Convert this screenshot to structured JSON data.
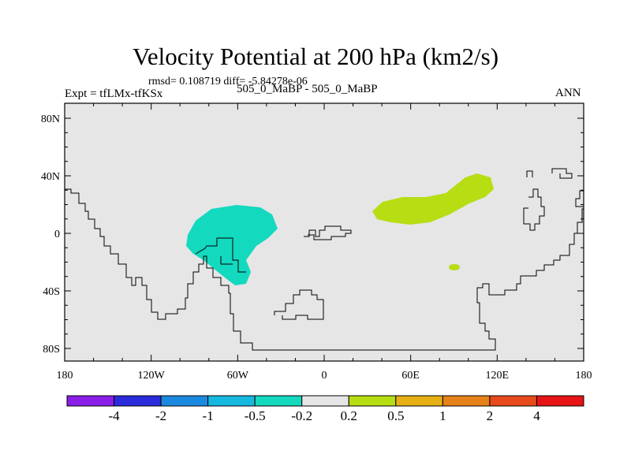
{
  "title": "Velocity Potential at 200 hPa (km2/s)",
  "stats": "rmsd= 0.108719 diff= -5.84278e-06",
  "expt": "Expt = tfLMx-tfKSx",
  "subtitle": "505_0_MaBP - 505_0_MaBP",
  "season": "ANN",
  "lat_ticks": [
    "80N",
    "40N",
    "0",
    "40S",
    "80S"
  ],
  "lon_ticks": [
    "180",
    "120W",
    "60W",
    "0",
    "60E",
    "120E",
    "180"
  ],
  "colorbar": {
    "colors": [
      "#8a1ee6",
      "#2b2bdc",
      "#1a8ae0",
      "#16b8e0",
      "#13d9bf",
      "#e6e6e6",
      "#b7dd13",
      "#e6b015",
      "#e6821a",
      "#e64a1a",
      "#e61414"
    ],
    "labels": [
      "-4",
      "-2",
      "-1",
      "-0.5",
      "-0.2",
      "0.2",
      "0.5",
      "1",
      "2",
      "4"
    ]
  },
  "colors": {
    "background": "#e6e6e6",
    "negative_fill": "#13d9bf",
    "positive_fill": "#b7dd13"
  }
}
